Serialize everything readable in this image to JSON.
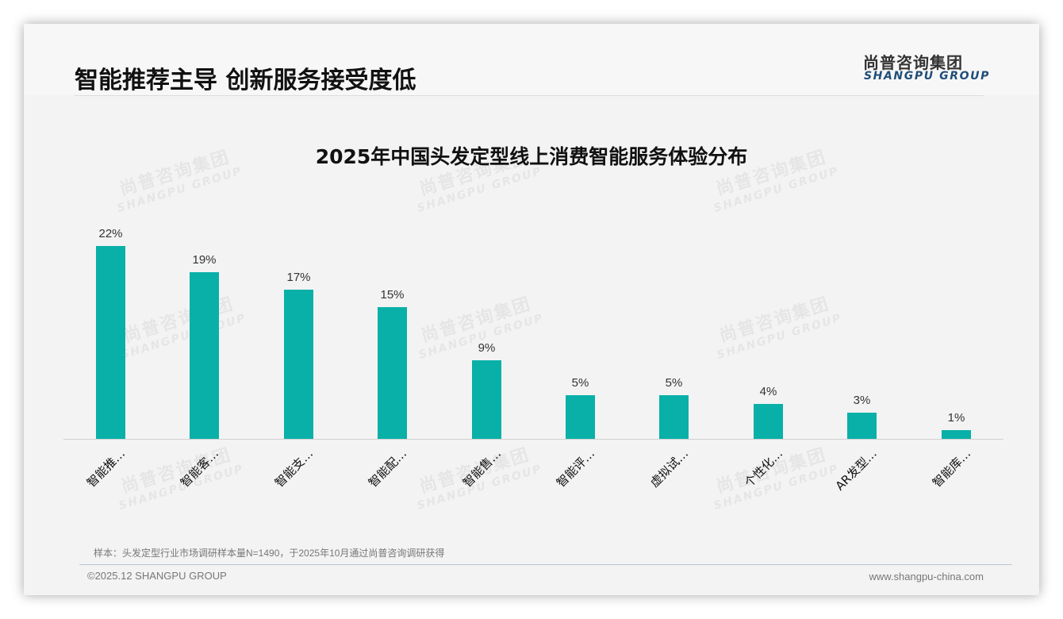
{
  "slide": {
    "title": "智能推荐主导 创新服务接受度低",
    "logo": {
      "cn": "尚普咨询集团",
      "en": "SHANGPU GROUP"
    },
    "watermark": {
      "cn": "尚普咨询集团",
      "en": "SHANGPU GROUP"
    },
    "source_note": "样本：头发定型行业市场调研样本量N=1490，于2025年10月通过尚普咨询调研获得",
    "copyright": "©2025.12 SHANGPU GROUP",
    "website": "www.shangpu-china.com",
    "colors": {
      "bar": "#08b0a8",
      "logo_en": "#1f4e79",
      "background": "#f3f3f3"
    }
  },
  "chart_data": {
    "type": "bar",
    "title": "2025年中国头发定型线上消费智能服务体验分布",
    "categories": [
      "智能推…",
      "智能客…",
      "智能支…",
      "智能配…",
      "智能售…",
      "智能评…",
      "虚拟试…",
      "个性化…",
      "AR发型…",
      "智能库…"
    ],
    "values": [
      22,
      19,
      17,
      15,
      9,
      5,
      5,
      4,
      3,
      1
    ],
    "value_labels": [
      "22%",
      "19%",
      "17%",
      "15%",
      "9%",
      "5%",
      "5%",
      "4%",
      "3%",
      "1%"
    ],
    "xlabel": "",
    "ylabel": "",
    "ylim": [
      0,
      25
    ],
    "grid": false,
    "legend": "none",
    "unit": "%"
  }
}
